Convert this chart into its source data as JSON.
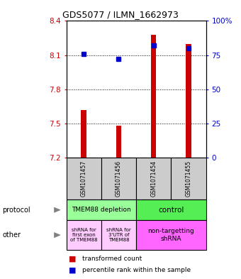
{
  "title": "GDS5077 / ILMN_1662973",
  "samples": [
    "GSM1071457",
    "GSM1071456",
    "GSM1071454",
    "GSM1071455"
  ],
  "red_values": [
    7.62,
    7.48,
    8.28,
    8.2
  ],
  "blue_values_pct": [
    76,
    72,
    82,
    80
  ],
  "ymin": 7.2,
  "ymax": 8.4,
  "yticks_left": [
    7.2,
    7.5,
    7.8,
    8.1,
    8.4
  ],
  "yticks_right": [
    0,
    25,
    50,
    75,
    100
  ],
  "yticks_right_labels": [
    "0",
    "25",
    "50",
    "75",
    "100%"
  ],
  "red_color": "#cc0000",
  "blue_color": "#0000cc",
  "grid_lines": [
    7.5,
    7.8,
    8.1
  ],
  "protocol_color_left": "#99ff99",
  "protocol_color_right": "#55ee55",
  "other_color_left": "#ffccff",
  "other_color_right": "#ff66ff",
  "sample_bg": "#cccccc",
  "legend_red": "transformed count",
  "legend_blue": "percentile rank within the sample",
  "fig_width": 3.4,
  "fig_height": 3.93,
  "fig_dpi": 100
}
